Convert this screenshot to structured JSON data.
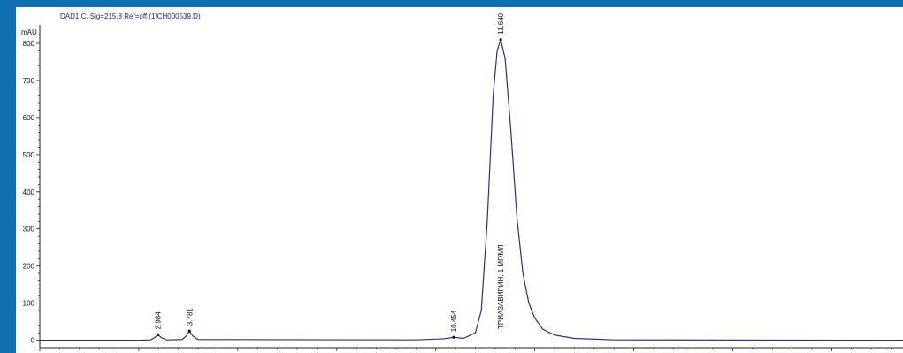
{
  "colors": {
    "background": "#0f6fb0",
    "trace": "#2b2b9e",
    "header": "#1a1aa8"
  },
  "chart_data": {
    "type": "line",
    "header": "DAD1 C, Sig=215,8 Ref=off (1\\CH000539.D)",
    "ylabel": "mAU",
    "xlabel": "",
    "xlim": [
      0,
      21.8
    ],
    "ylim": [
      -20,
      850
    ],
    "y_ticks": [
      0,
      100,
      200,
      300,
      400,
      500,
      600,
      700,
      800
    ],
    "x_ticks": [
      "2.5",
      "5",
      "7.5",
      "10",
      "12.5",
      "15",
      "17.5",
      "20"
    ],
    "x_tick_values": [
      2.5,
      5,
      7.5,
      10,
      12.5,
      15,
      17.5,
      20
    ],
    "grid": false,
    "peaks": [
      {
        "rt": 2.984,
        "label": "2.984",
        "height": 15,
        "name": ""
      },
      {
        "rt": 3.781,
        "label": "3.781",
        "height": 25,
        "name": ""
      },
      {
        "rt": 10.454,
        "label": "10.454",
        "height": 8,
        "name": ""
      },
      {
        "rt": 11.64,
        "label": "11.640",
        "height": 810,
        "name": "ТРИАЗАВИРИН, 1 МГ/МЛ"
      }
    ],
    "series": [
      {
        "x": [
          0.0,
          2.5,
          2.8,
          2.9,
          2.984,
          3.07,
          3.2,
          3.6,
          3.7,
          3.781,
          3.86,
          4.0,
          9.5,
          10.2,
          10.454,
          10.7,
          11.0,
          11.15,
          11.3,
          11.45,
          11.55,
          11.64,
          11.75,
          11.9,
          12.05,
          12.2,
          12.35,
          12.5,
          12.7,
          13.0,
          13.5,
          14.5,
          21.8
        ],
        "y": [
          0,
          0,
          1,
          7,
          15,
          7,
          1,
          2,
          12,
          25,
          12,
          2,
          1,
          4,
          8,
          5,
          20,
          80,
          320,
          660,
          780,
          810,
          760,
          560,
          330,
          180,
          100,
          60,
          30,
          14,
          5,
          1,
          0
        ]
      }
    ]
  }
}
